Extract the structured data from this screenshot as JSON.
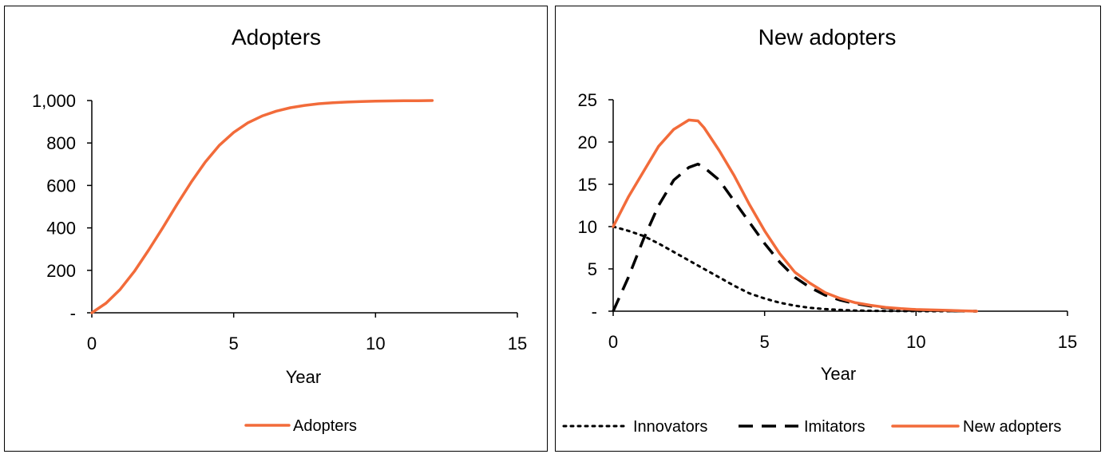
{
  "chart_data": [
    {
      "type": "line",
      "title": "Adopters",
      "xlabel": "Year",
      "ylabel": "",
      "xlim": [
        0,
        15
      ],
      "ylim": [
        0,
        1000
      ],
      "xticks": [
        0,
        5,
        10,
        15
      ],
      "xtick_labels": [
        "0",
        "5",
        "10",
        "15"
      ],
      "yticks": [
        0,
        200,
        400,
        600,
        800,
        1000
      ],
      "ytick_labels": [
        "-",
        "200",
        "400",
        "600",
        "800",
        "1,000"
      ],
      "legend": "bottom",
      "series": [
        {
          "name": "Adopters",
          "style": "solid",
          "color": "#F26B3A",
          "x": [
            0,
            0.5,
            1,
            1.5,
            2,
            2.5,
            3,
            3.5,
            4,
            4.5,
            5,
            5.5,
            6,
            6.5,
            7,
            7.5,
            8,
            8.5,
            9,
            9.5,
            10,
            10.5,
            11,
            11.5,
            12
          ],
          "y": [
            0,
            45,
            110,
            195,
            295,
            400,
            510,
            615,
            710,
            790,
            850,
            895,
            927,
            950,
            966,
            977,
            985,
            990,
            993,
            995,
            997,
            998,
            999,
            999,
            1000
          ]
        }
      ]
    },
    {
      "type": "line",
      "title": "New adopters",
      "xlabel": "Year",
      "ylabel": "",
      "xlim": [
        0,
        15
      ],
      "ylim": [
        0,
        25
      ],
      "xticks": [
        0,
        5,
        10,
        15
      ],
      "xtick_labels": [
        "0",
        "5",
        "10",
        "15"
      ],
      "yticks": [
        0,
        5,
        10,
        15,
        20,
        25
      ],
      "ytick_labels": [
        "-",
        "5",
        "10",
        "15",
        "20",
        "25"
      ],
      "legend": "bottom",
      "series": [
        {
          "name": "Innovators",
          "style": "dotted",
          "color": "#000000",
          "x": [
            0,
            0.5,
            1,
            1.5,
            2,
            2.5,
            3,
            3.5,
            4,
            4.5,
            5,
            5.5,
            6,
            6.5,
            7,
            7.5,
            8,
            8.5,
            9,
            9.5,
            10,
            10.5,
            11,
            11.5,
            12
          ],
          "y": [
            10,
            9.5,
            8.9,
            8.0,
            7.0,
            6.0,
            5.0,
            4.0,
            3.0,
            2.1,
            1.5,
            1.0,
            0.65,
            0.4,
            0.25,
            0.15,
            0.08,
            0.05,
            0.03,
            0.02,
            0.01,
            0.0,
            0.0,
            0.0,
            0.0
          ]
        },
        {
          "name": "Imitators",
          "style": "dashed",
          "color": "#000000",
          "x": [
            0,
            0.5,
            1,
            1.5,
            2,
            2.5,
            2.8,
            3,
            3.5,
            4,
            4.5,
            5,
            5.5,
            6,
            6.5,
            7,
            7.5,
            8,
            8.5,
            9,
            9.5,
            10,
            10.5,
            11,
            11.5,
            12
          ],
          "y": [
            0,
            4.0,
            8.5,
            12.5,
            15.5,
            17.0,
            17.4,
            17.0,
            15.5,
            13.0,
            10.5,
            8.0,
            5.8,
            4.0,
            2.8,
            1.9,
            1.3,
            0.9,
            0.6,
            0.4,
            0.25,
            0.15,
            0.1,
            0.05,
            0.02,
            0.0
          ]
        },
        {
          "name": "New adopters",
          "style": "solid",
          "color": "#F26B3A",
          "x": [
            0,
            0.5,
            1,
            1.5,
            2,
            2.5,
            2.8,
            3,
            3.5,
            4,
            4.5,
            5,
            5.5,
            6,
            6.5,
            7,
            7.5,
            8,
            8.5,
            9,
            9.5,
            10,
            10.5,
            11,
            11.5,
            12
          ],
          "y": [
            10,
            13.5,
            16.5,
            19.5,
            21.5,
            22.6,
            22.5,
            21.7,
            19.0,
            16.0,
            12.6,
            9.5,
            6.8,
            4.6,
            3.3,
            2.2,
            1.5,
            1.0,
            0.7,
            0.45,
            0.3,
            0.2,
            0.15,
            0.1,
            0.05,
            0.0
          ]
        }
      ]
    }
  ]
}
